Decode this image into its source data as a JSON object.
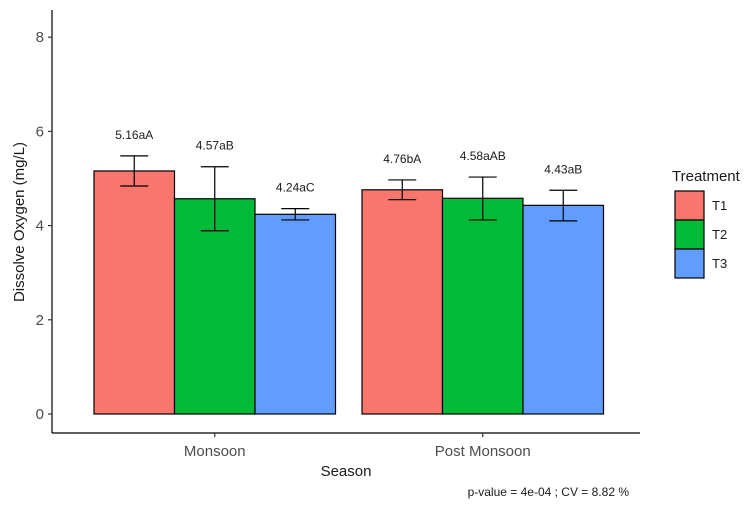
{
  "chart_data": {
    "type": "bar",
    "categories": [
      "Monsoon",
      "Post Monsoon"
    ],
    "series": [
      {
        "name": "T1",
        "color": "#F8766D",
        "values": [
          5.16,
          4.76
        ],
        "err_low": [
          4.84,
          4.55
        ],
        "err_high": [
          5.48,
          4.97
        ],
        "labels": [
          "5.16aA",
          "4.76bA"
        ]
      },
      {
        "name": "T2",
        "color": "#00BA38",
        "values": [
          4.57,
          4.58
        ],
        "err_low": [
          3.89,
          4.12
        ],
        "err_high": [
          5.25,
          5.03
        ],
        "labels": [
          "4.57aB",
          "4.58aAB"
        ]
      },
      {
        "name": "T3",
        "color": "#619CFF",
        "values": [
          4.24,
          4.43
        ],
        "err_low": [
          4.12,
          4.1
        ],
        "err_high": [
          4.36,
          4.75
        ],
        "labels": [
          "4.24aC",
          "4.43aB"
        ]
      }
    ],
    "xlabel": "Season",
    "ylabel": "Dissolve Oxygen (mg/L)",
    "ylim": [
      0,
      8.6
    ],
    "yticks": [
      0,
      2,
      4,
      6,
      8
    ],
    "legend_title": "Treatment",
    "legend_position": "right",
    "grid": false,
    "caption": "p-value  = 4e-04 ; CV =  8.82 %"
  }
}
